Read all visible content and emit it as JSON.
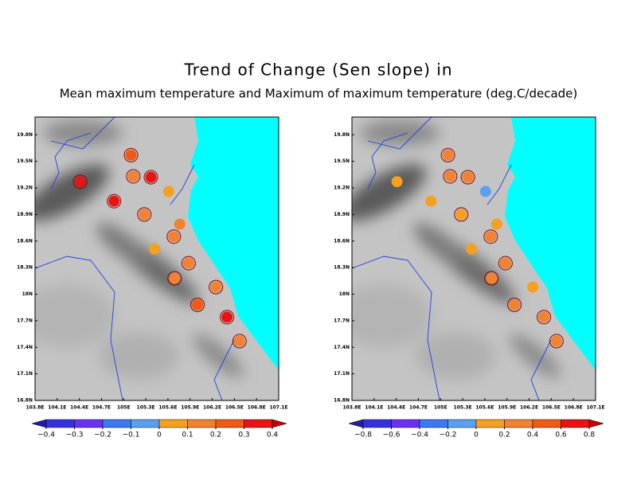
{
  "title": "Trend of Change (Sen slope) in",
  "subtitle": "Mean maximum temperature and Maximum of maximum temperature (deg.C/decade)",
  "chart_data": [
    {
      "type": "map",
      "xlim": [
        103.8,
        107.1
      ],
      "ylim": [
        16.8,
        20.0
      ],
      "xticks": [
        {
          "value": 103.8,
          "label": "103.8E"
        },
        {
          "value": 104.1,
          "label": "104.1E"
        },
        {
          "value": 104.4,
          "label": "104.4E"
        },
        {
          "value": 104.7,
          "label": "104.7E"
        },
        {
          "value": 105,
          "label": "105E"
        },
        {
          "value": 105.3,
          "label": "105.3E"
        },
        {
          "value": 105.6,
          "label": "105.6E"
        },
        {
          "value": 105.9,
          "label": "105.9E"
        },
        {
          "value": 106.2,
          "label": "106.2E"
        },
        {
          "value": 106.5,
          "label": "106.5E"
        },
        {
          "value": 106.8,
          "label": "106.8E"
        },
        {
          "value": 107.1,
          "label": "107.1E"
        }
      ],
      "yticks": [
        {
          "value": 16.8,
          "label": "16.8N"
        },
        {
          "value": 17.1,
          "label": "17.1N"
        },
        {
          "value": 17.4,
          "label": "17.4N"
        },
        {
          "value": 17.7,
          "label": "17.7N"
        },
        {
          "value": 18,
          "label": "18N"
        },
        {
          "value": 18.3,
          "label": "18.3N"
        },
        {
          "value": 18.6,
          "label": "18.6N"
        },
        {
          "value": 18.9,
          "label": "18.9N"
        },
        {
          "value": 19.2,
          "label": "19.2N"
        },
        {
          "value": 19.5,
          "label": "19.5N"
        },
        {
          "value": 19.8,
          "label": "19.8N"
        }
      ],
      "lon": [
        104.41,
        105.1,
        105.13,
        105.37,
        105.61,
        104.87,
        105.28,
        105.76,
        105.68,
        105.42,
        105.88,
        105.69,
        106.25,
        106.0,
        106.4,
        106.57
      ],
      "lat": [
        19.27,
        19.57,
        19.33,
        19.32,
        19.16,
        19.05,
        18.9,
        18.79,
        18.65,
        18.51,
        18.35,
        18.18,
        18.08,
        17.88,
        17.74,
        17.47
      ],
      "values": [
        0.35,
        0.25,
        0.15,
        0.35,
        0.05,
        0.35,
        0.15,
        0.15,
        0.15,
        0.05,
        0.15,
        0.15,
        0.15,
        0.25,
        0.35,
        0.15
      ],
      "significant": [
        true,
        true,
        true,
        true,
        false,
        true,
        true,
        false,
        true,
        false,
        true,
        true,
        true,
        true,
        true,
        true
      ],
      "colorbar": {
        "ticks": [
          {
            "value": -0.4,
            "label": "−0.4"
          },
          {
            "value": -0.3,
            "label": "−0.3"
          },
          {
            "value": -0.2,
            "label": "−0.2"
          },
          {
            "value": -0.1,
            "label": "−0.1"
          },
          0,
          0.1,
          0.2,
          0.3,
          0.4
        ],
        "colors": [
          "#2121a0",
          "#3232dc",
          "#6a32f0",
          "#3c78f0",
          "#5aa0f0",
          "#f5a020",
          "#f08232",
          "#f05a14",
          "#e61414",
          "#c80000"
        ]
      }
    },
    {
      "type": "map",
      "xlim": [
        103.8,
        107.1
      ],
      "ylim": [
        16.8,
        20.0
      ],
      "xticks": [
        {
          "value": 103.8,
          "label": "103.8E"
        },
        {
          "value": 104.1,
          "label": "104.1E"
        },
        {
          "value": 104.4,
          "label": "104.4E"
        },
        {
          "value": 104.7,
          "label": "104.7E"
        },
        {
          "value": 105,
          "label": "105E"
        },
        {
          "value": 105.3,
          "label": "105.3E"
        },
        {
          "value": 105.6,
          "label": "105.6E"
        },
        {
          "value": 105.9,
          "label": "105.9E"
        },
        {
          "value": 106.2,
          "label": "106.2E"
        },
        {
          "value": 106.5,
          "label": "106.5E"
        },
        {
          "value": 106.8,
          "label": "106.8E"
        },
        {
          "value": 107.1,
          "label": "107.1E"
        }
      ],
      "yticks": [
        {
          "value": 16.8,
          "label": "16.8N"
        },
        {
          "value": 17.1,
          "label": "17.1N"
        },
        {
          "value": 17.4,
          "label": "17.4N"
        },
        {
          "value": 17.7,
          "label": "17.7N"
        },
        {
          "value": 18,
          "label": "18N"
        },
        {
          "value": 18.3,
          "label": "18.3N"
        },
        {
          "value": 18.6,
          "label": "18.6N"
        },
        {
          "value": 18.9,
          "label": "18.9N"
        },
        {
          "value": 19.2,
          "label": "19.2N"
        },
        {
          "value": 19.5,
          "label": "19.5N"
        },
        {
          "value": 19.8,
          "label": "19.8N"
        }
      ],
      "lon": [
        104.41,
        105.1,
        105.13,
        105.37,
        105.61,
        104.87,
        105.28,
        105.76,
        105.68,
        105.42,
        105.88,
        105.69,
        106.25,
        106.0,
        106.4,
        106.57
      ],
      "lat": [
        19.27,
        19.57,
        19.33,
        19.32,
        19.16,
        19.05,
        18.9,
        18.79,
        18.65,
        18.51,
        18.35,
        18.18,
        18.08,
        17.88,
        17.74,
        17.47
      ],
      "values": [
        0.1,
        0.3,
        0.3,
        0.3,
        -0.1,
        0.1,
        0.1,
        0.1,
        0.3,
        0.1,
        0.3,
        0.3,
        0.1,
        0.3,
        0.3,
        0.3
      ],
      "significant": [
        false,
        true,
        true,
        true,
        false,
        false,
        true,
        false,
        true,
        false,
        true,
        true,
        false,
        true,
        true,
        true
      ],
      "colorbar": {
        "ticks": [
          {
            "value": -0.8,
            "label": "−0.8"
          },
          {
            "value": -0.6,
            "label": "−0.6"
          },
          {
            "value": -0.4,
            "label": "−0.4"
          },
          {
            "value": -0.2,
            "label": "−0.2"
          },
          0,
          0.2,
          0.4,
          0.6,
          0.8
        ],
        "colors": [
          "#2121a0",
          "#3232dc",
          "#6a32f0",
          "#3c78f0",
          "#5aa0f0",
          "#f5a020",
          "#f08232",
          "#f05a14",
          "#e61414",
          "#c80000"
        ]
      }
    }
  ]
}
